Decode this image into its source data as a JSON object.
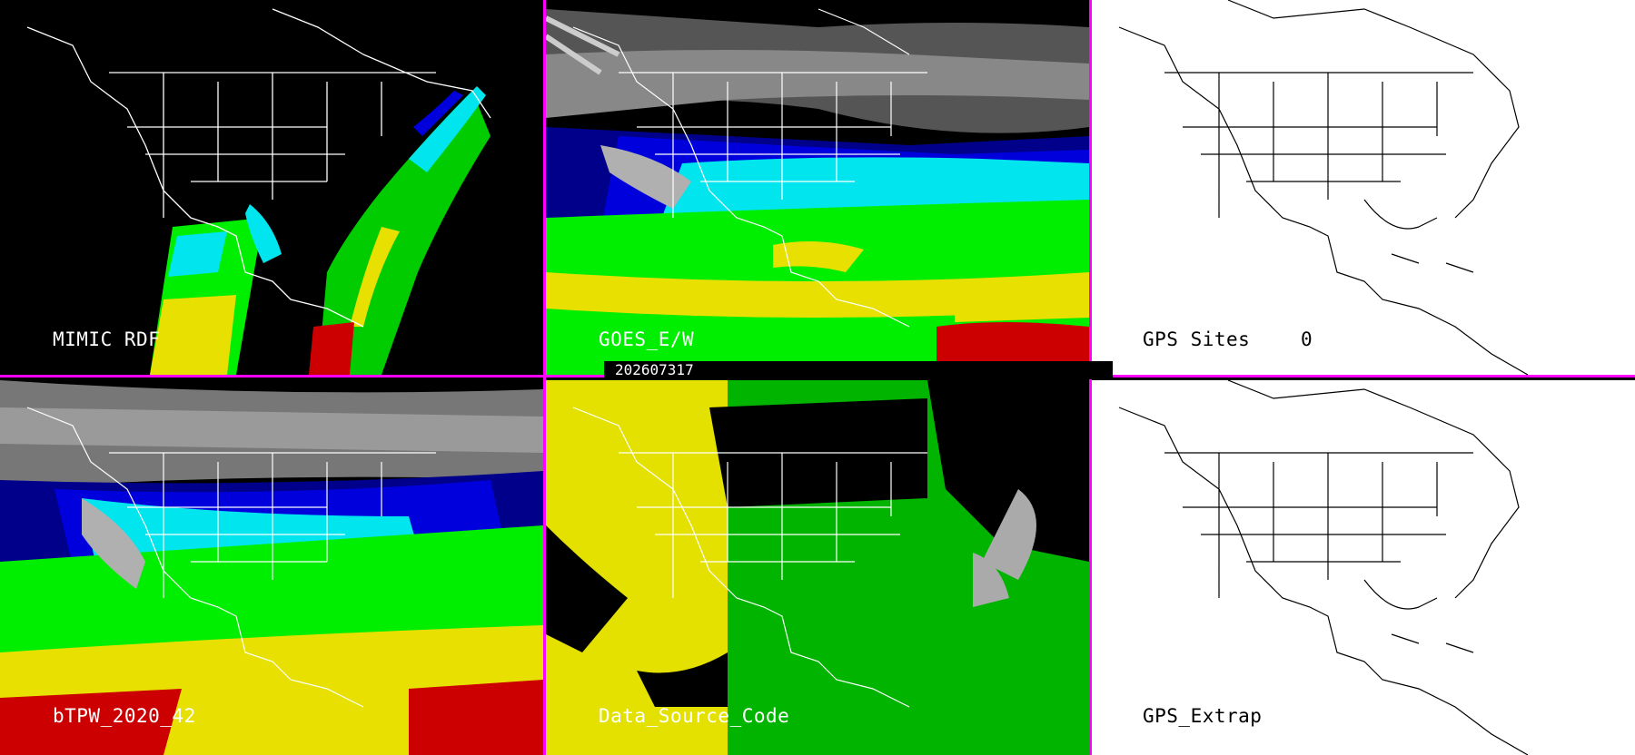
{
  "panels": {
    "mimic": {
      "label": "MIMIC RDF"
    },
    "goes": {
      "label": "GOES_E/W"
    },
    "gps_sites": {
      "label": "GPS Sites",
      "count": "0"
    },
    "btpw": {
      "label": "bTPW_2020_42"
    },
    "data_source": {
      "label": "Data_Source_Code"
    },
    "gps_extrap": {
      "label": "GPS_Extrap"
    }
  },
  "timestamp": "202607317",
  "colors": {
    "divider": "#ff00ff",
    "map_lines_dark": "#ffffff",
    "map_lines_light": "#000000",
    "tpw_blue_dark": "#00008b",
    "tpw_blue": "#0000dd",
    "tpw_cyan": "#00e5ee",
    "tpw_green": "#00ee00",
    "tpw_yellow": "#e8e000",
    "tpw_red": "#cc0000",
    "cloud_gray": "#9a9a9a",
    "source_yellow": "#e4e000",
    "source_green": "#00b400"
  }
}
